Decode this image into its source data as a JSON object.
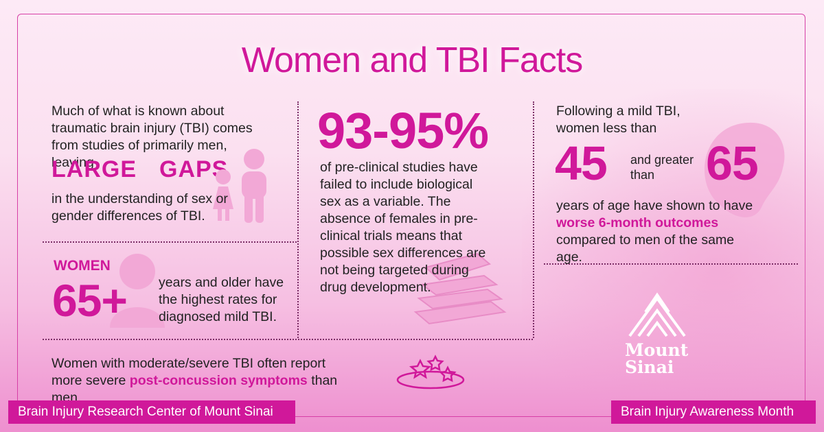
{
  "title": "Women and TBI Facts",
  "col1": {
    "intro": "Much of what is known about traumatic brain injury (TBI) comes from studies of primarily men, leaving",
    "large": "LARGE",
    "gaps": "GAPS",
    "gaps_text": "in the understanding of sex or gender differences of TBI.",
    "women_label": "WOMEN",
    "age_stat": "65+",
    "age_text": "years and older have the highest rates for diagnosed mild TBI."
  },
  "col2": {
    "stat": "93-95%",
    "text": "of pre-clinical studies have failed to include biological sex as a variable. The absence of females in pre-clinical trials means that possible sex differences are not being targeted during drug development."
  },
  "col3": {
    "intro": "Following a mild TBI, women less than",
    "num1": "45",
    "mid": "and greater than",
    "num2": "65",
    "text_before": "years of age have shown to have",
    "highlight": "worse 6-month outcomes",
    "text_after": "compared to men of the same age."
  },
  "bottom": {
    "text_before": "Women with moderate/severe TBI often report more severe",
    "highlight": "post-concussion symptoms",
    "text_after": "than men."
  },
  "logo": {
    "line1": "Mount",
    "line2": "Sinai"
  },
  "footer": {
    "left": "Brain Injury Research Center of Mount Sinai",
    "right": "Brain Injury Awareness Month"
  },
  "colors": {
    "accent": "#d0189a",
    "text": "#222222",
    "divider": "#7a2b64"
  },
  "icons": [
    "family-silhouette-icon",
    "woman-silhouette-icon",
    "books-stack-icon",
    "dizzy-stars-icon",
    "mountain-logo-icon"
  ]
}
